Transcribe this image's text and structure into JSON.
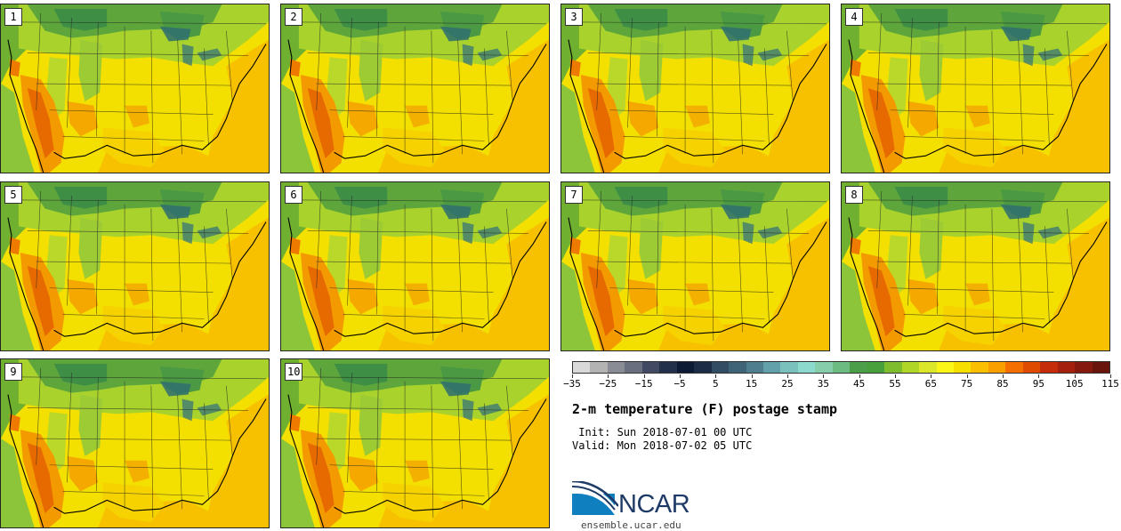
{
  "stamps": [
    {
      "label": "1"
    },
    {
      "label": "2"
    },
    {
      "label": "3"
    },
    {
      "label": "4"
    },
    {
      "label": "5"
    },
    {
      "label": "6"
    },
    {
      "label": "7"
    },
    {
      "label": "8"
    },
    {
      "label": "9"
    },
    {
      "label": "10"
    }
  ],
  "legend": {
    "colors": [
      "#d9d9d9",
      "#b3b3b3",
      "#8a8c95",
      "#6a6f80",
      "#414a62",
      "#23304a",
      "#0c1a33",
      "#1c2c47",
      "#324c63",
      "#3f6478",
      "#4f7f8f",
      "#62a1aa",
      "#7ac0bd",
      "#8cd9cd",
      "#86cdac",
      "#6cbc82",
      "#4c9e48",
      "#47a03c",
      "#7ebe2e",
      "#b0d628",
      "#dce62a",
      "#fbf617",
      "#f7df00",
      "#f9bf00",
      "#f9a000",
      "#f56f00",
      "#e04b02",
      "#c52c0a",
      "#a41f0e",
      "#85190f",
      "#6a140e"
    ],
    "ticks": [
      "−35",
      "−25",
      "−15",
      "−5",
      "5",
      "15",
      "25",
      "35",
      "45",
      "55",
      "65",
      "75",
      "85",
      "95",
      "105",
      "115"
    ]
  },
  "title": "2-m temperature (F) postage stamp",
  "init_line": " Init: Sun 2018-07-01 00 UTC",
  "valid_line": "Valid: Mon 2018-07-02 05 UTC",
  "logo_text": "NCAR",
  "website": "ensemble.ucar.edu"
}
